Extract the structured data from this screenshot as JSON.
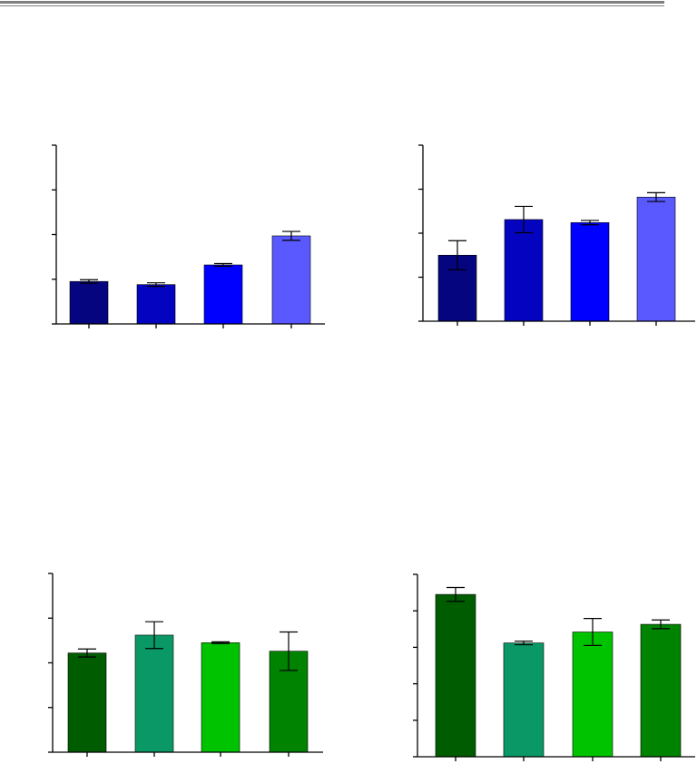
{
  "page": {
    "header_rule_color": "#7f7f7f"
  },
  "chart_data": [
    {
      "type": "bar",
      "categories": [
        "",
        "",
        "",
        ""
      ],
      "colors": [
        "#05057f",
        "#0404c0",
        "#0000ff",
        "#5959ff"
      ],
      "values": [
        0.95,
        0.88,
        1.32,
        1.97
      ],
      "errors": [
        0.04,
        0.04,
        0.03,
        0.1
      ],
      "ylim": [
        0,
        4
      ],
      "yticks": [
        0,
        1,
        2,
        3,
        4
      ],
      "title": "",
      "xlabel": "",
      "ylabel": ""
    },
    {
      "type": "bar",
      "categories": [
        "",
        "",
        "",
        ""
      ],
      "colors": [
        "#05057f",
        "#0404c0",
        "#0000ff",
        "#5959ff"
      ],
      "values": [
        1.5,
        2.31,
        2.24,
        2.82
      ],
      "errors": [
        0.33,
        0.3,
        0.05,
        0.1
      ],
      "ylim": [
        0,
        4
      ],
      "yticks": [
        0,
        1,
        2,
        3,
        4
      ],
      "title": "",
      "xlabel": "",
      "ylabel": ""
    },
    {
      "type": "bar",
      "categories": [
        "",
        "",
        "",
        ""
      ],
      "colors": [
        "#005c00",
        "#0a9966",
        "#00c300",
        "#008300"
      ],
      "values": [
        2.22,
        2.62,
        2.45,
        2.26
      ],
      "errors": [
        0.09,
        0.3,
        0.02,
        0.43
      ],
      "ylim": [
        0,
        4
      ],
      "yticks": [
        0,
        1,
        2,
        3,
        4
      ],
      "title": "",
      "xlabel": "",
      "ylabel": ""
    },
    {
      "type": "bar",
      "categories": [
        "",
        "",
        "",
        ""
      ],
      "colors": [
        "#005c00",
        "#0a9966",
        "#00c300",
        "#008300"
      ],
      "values": [
        4.45,
        3.12,
        3.42,
        3.63
      ],
      "errors": [
        0.19,
        0.05,
        0.37,
        0.12
      ],
      "ylim": [
        0,
        5
      ],
      "yticks": [
        0,
        1,
        2,
        3,
        4,
        5
      ],
      "title": "",
      "xlabel": "",
      "ylabel": ""
    }
  ]
}
